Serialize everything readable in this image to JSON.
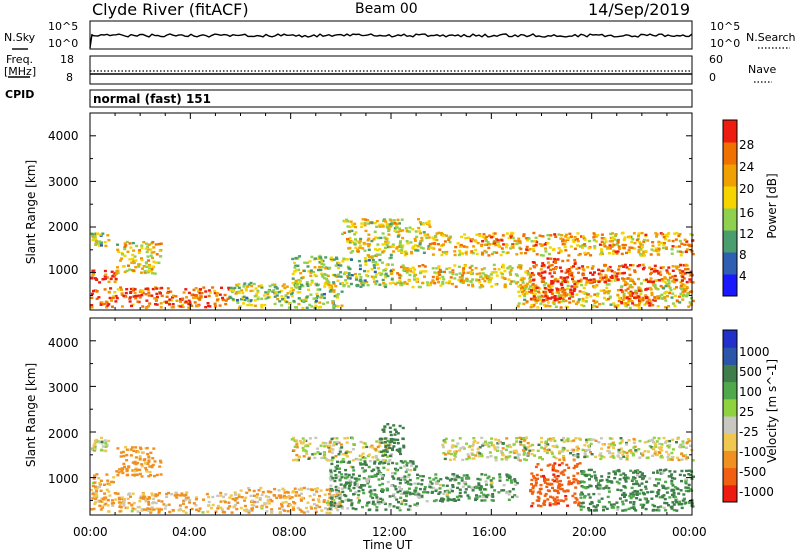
{
  "header": {
    "station": "Clyde River (fitACF)",
    "beam": "Beam 00",
    "date": "14/Sep/2019"
  },
  "noise_panel": {
    "left_label": "N.Sky",
    "right_label": "N.Search",
    "left_ticks": [
      "10^5",
      "10^0"
    ],
    "right_ticks": [
      "10^5",
      "10^0"
    ]
  },
  "freq_panel": {
    "left_label_1": "Freq.",
    "left_label_2": "[MHz]",
    "right_label": "Nave",
    "left_ticks": [
      "18",
      "8"
    ],
    "right_ticks": [
      "60",
      "0"
    ]
  },
  "cpid_panel": {
    "label": "CPID",
    "program": "normal (fast) 151"
  },
  "time_axis": {
    "label": "Time UT",
    "ticks": [
      "00:00",
      "04:00",
      "08:00",
      "12:00",
      "16:00",
      "20:00",
      "00:00"
    ],
    "range_hours": [
      0,
      24
    ]
  },
  "chart_data": [
    {
      "type": "heatmap",
      "ylabel": "Slant Range [km]",
      "yticks": [
        "1000",
        "2000",
        "3000",
        "4000"
      ],
      "ylim": [
        180,
        4500
      ],
      "xlim_hours": [
        0,
        24
      ],
      "colorbar_label": "Power [dB]",
      "colorbar_ticks": [
        "4",
        "8",
        "12",
        "16",
        "20",
        "24",
        "28"
      ],
      "colorbar_range": [
        0,
        30
      ],
      "colors": [
        "#1a18ff",
        "#2f5fb3",
        "#4a9e6d",
        "#8fd14f",
        "#f5d400",
        "#f0a000",
        "#f07000",
        "#ee1c10"
      ],
      "echo_regions": [
        {
          "t0": 0.0,
          "t1": 5.5,
          "r0": 250,
          "r1": 700,
          "level": 24
        },
        {
          "t0": 0.0,
          "t1": 1.0,
          "r0": 800,
          "r1": 1100,
          "level": 26
        },
        {
          "t0": 0.0,
          "t1": 0.7,
          "r0": 1600,
          "r1": 1900,
          "level": 14
        },
        {
          "t0": 1.0,
          "t1": 2.8,
          "r0": 1000,
          "r1": 1700,
          "level": 18
        },
        {
          "t0": 5.5,
          "t1": 10.0,
          "r0": 250,
          "r1": 800,
          "level": 14
        },
        {
          "t0": 8.0,
          "t1": 12.0,
          "r0": 700,
          "r1": 1400,
          "level": 14
        },
        {
          "t0": 10.0,
          "t1": 13.5,
          "r0": 1400,
          "r1": 2200,
          "level": 16
        },
        {
          "t0": 12.0,
          "t1": 17.5,
          "r0": 700,
          "r1": 1200,
          "level": 18
        },
        {
          "t0": 13.5,
          "t1": 24.0,
          "r0": 1400,
          "r1": 1900,
          "level": 20
        },
        {
          "t0": 17.0,
          "t1": 24.0,
          "r0": 250,
          "r1": 900,
          "level": 18
        },
        {
          "t0": 17.5,
          "t1": 19.3,
          "r0": 400,
          "r1": 1350,
          "level": 28
        },
        {
          "t0": 19.3,
          "t1": 24.0,
          "r0": 800,
          "r1": 1200,
          "level": 26
        },
        {
          "t0": 21.0,
          "t1": 22.5,
          "r0": 300,
          "r1": 700,
          "level": 26
        }
      ]
    },
    {
      "type": "heatmap",
      "ylabel": "Slant Range [km]",
      "yticks": [
        "1000",
        "2000",
        "3000",
        "4000"
      ],
      "ylim": [
        180,
        4500
      ],
      "xlim_hours": [
        0,
        24
      ],
      "colorbar_label": "Velocity [m s^-1]",
      "colorbar_ticks": [
        "1000",
        "500",
        "100",
        "25",
        "-25",
        "-100",
        "-500",
        "-1000"
      ],
      "colorbar_range": [
        -1000,
        1000
      ],
      "colors": [
        "#2030c8",
        "#2a55a8",
        "#3f7d4a",
        "#4fa84a",
        "#8ed240",
        "#c8c8c0",
        "#f0c850",
        "#f09020",
        "#f06010",
        "#ee1c10"
      ],
      "echo_regions": [
        {
          "t0": 0.0,
          "t1": 5.5,
          "r0": 250,
          "r1": 700,
          "velocity": -100
        },
        {
          "t0": 0.0,
          "t1": 0.9,
          "r0": 700,
          "r1": 1100,
          "velocity": -100
        },
        {
          "t0": 0.0,
          "t1": 0.7,
          "r0": 1600,
          "r1": 1900,
          "velocity": 0
        },
        {
          "t0": 1.0,
          "t1": 2.8,
          "r0": 1050,
          "r1": 1700,
          "velocity": -200
        },
        {
          "t0": 5.5,
          "t1": 10.0,
          "r0": 250,
          "r1": 800,
          "velocity": -100
        },
        {
          "t0": 8.0,
          "t1": 12.0,
          "r0": 1400,
          "r1": 1900,
          "velocity": 0
        },
        {
          "t0": 9.5,
          "t1": 13.0,
          "r0": 300,
          "r1": 1400,
          "velocity": 100
        },
        {
          "t0": 11.5,
          "t1": 12.5,
          "r0": 1500,
          "r1": 2200,
          "velocity": 200
        },
        {
          "t0": 13.0,
          "t1": 17.0,
          "r0": 500,
          "r1": 1100,
          "velocity": 100
        },
        {
          "t0": 14.0,
          "t1": 24.0,
          "r0": 1400,
          "r1": 1900,
          "velocity": 0
        },
        {
          "t0": 17.5,
          "t1": 19.5,
          "r0": 400,
          "r1": 1350,
          "velocity": -700
        },
        {
          "t0": 19.5,
          "t1": 24.0,
          "r0": 300,
          "r1": 1200,
          "velocity": 150
        }
      ]
    }
  ]
}
